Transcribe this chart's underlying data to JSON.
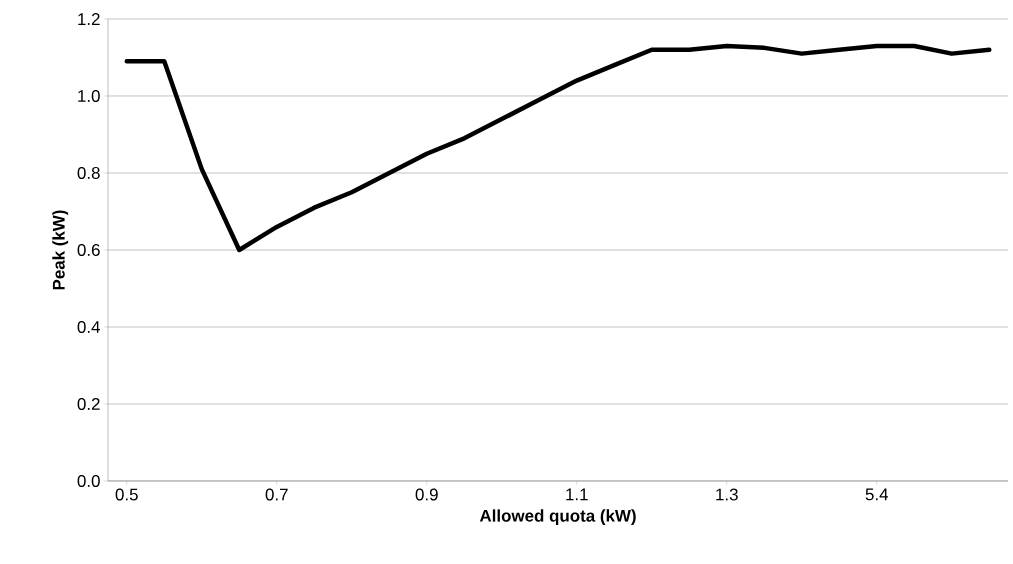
{
  "chart_data": {
    "type": "line",
    "xlabel": "Allowed quota (kW)",
    "ylabel": "Peak (kW)",
    "categories": [
      "0.5",
      null,
      null,
      null,
      "0.7",
      null,
      null,
      null,
      "0.9",
      null,
      null,
      null,
      "1.1",
      null,
      null,
      null,
      "1.3",
      null,
      null,
      null,
      "5.4",
      null,
      null,
      null
    ],
    "series": [
      {
        "color": "#000000",
        "values": [
          1.09,
          1.09,
          0.81,
          0.6,
          0.66,
          0.71,
          0.75,
          0.8,
          0.85,
          0.89,
          0.94,
          0.99,
          1.04,
          1.08,
          1.12,
          1.12,
          1.13,
          1.125,
          1.11,
          1.12,
          1.13,
          1.13,
          1.11,
          1.12
        ]
      }
    ],
    "ylim": [
      0,
      1.2
    ],
    "yticks": [
      {
        "value": 0,
        "label": "0.0"
      },
      0.2,
      0.4,
      0.6,
      0.8,
      {
        "value": 1,
        "label": "1.0"
      },
      1.2
    ],
    "grid": "y"
  }
}
